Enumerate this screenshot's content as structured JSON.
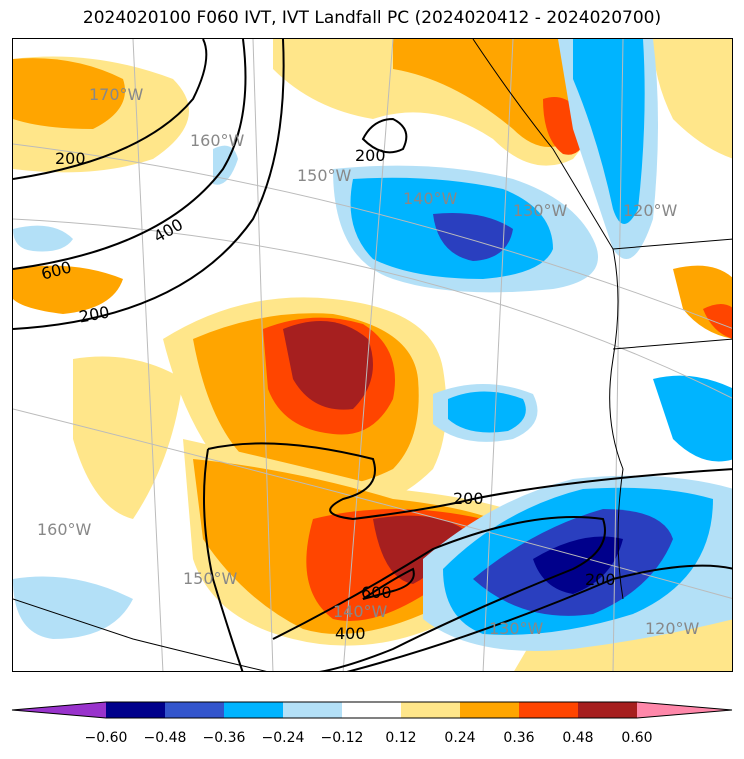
{
  "title": "2024020100 F060 IVT, IVT Landfall PC (2024020412 - 2024020700)",
  "map": {
    "longitude_labels_upper": [
      "170°W",
      "160°W",
      "150°W",
      "140°W",
      "130°W",
      "120°W"
    ],
    "longitude_labels_lower": [
      "160°W",
      "150°W",
      "140°W",
      "130°W",
      "120°W"
    ],
    "contour_labels": [
      "200",
      "200",
      "400",
      "600",
      "200",
      "200",
      "600",
      "400",
      "200"
    ],
    "colors": {
      "neg_strong": "#2a3fbf",
      "neg_mid": "#00b4ff",
      "neg_weak": "#b3e0f7",
      "pos_weak": "#ffe68a",
      "pos_mid": "#ffa500",
      "pos_strong": "#ff4500",
      "pos_max": "#a61f1f"
    }
  },
  "colorbar": {
    "ticks": [
      "−0.60",
      "−0.48",
      "−0.36",
      "−0.24",
      "−0.12",
      "0.12",
      "0.24",
      "0.36",
      "0.48",
      "0.60"
    ],
    "colors": [
      "#9933cc",
      "#00008b",
      "#3355cc",
      "#00b4ff",
      "#b3e0f7",
      "#ffffff",
      "#ffe68a",
      "#ffa500",
      "#ff4500",
      "#a61f1f",
      "#ff88aa"
    ]
  }
}
